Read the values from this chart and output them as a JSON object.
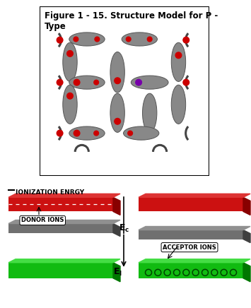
{
  "title": "Figure 1 - 15. Structure Model for P -\nType",
  "fig_bg": "#ffffff",
  "ellipse_color": "#888888",
  "dot_red": "#cc0000",
  "dot_purple": "#7700aa",
  "ionization_text": "IONIZATION ENRGY",
  "donor_text": "DONOR IONS",
  "acceptor_text": "ACCEPTOR IONS",
  "red_color": "#cc1111",
  "red_dark": "#880000",
  "red_light": "#dd3333",
  "gray_color": "#707070",
  "gray_dark": "#404040",
  "gray_light": "#909090",
  "green_color": "#11bb11",
  "green_dark": "#007700",
  "green_light": "#44dd44"
}
